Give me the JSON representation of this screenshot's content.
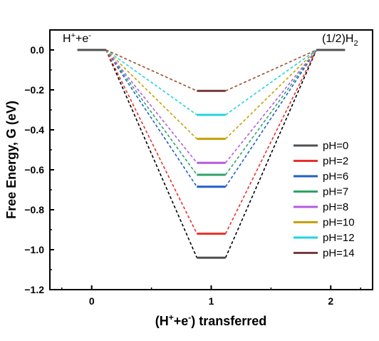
{
  "chart_data": {
    "type": "line",
    "xlabel": "(H⁺+e⁻) transferred",
    "ylabel": "Free Energy, G (eV)",
    "xlim": [
      -0.35,
      2.35
    ],
    "ylim": [
      -1.2,
      0.1
    ],
    "x_ticks": [
      0,
      1,
      2
    ],
    "x_tick_labels": [
      "0",
      "1",
      "2"
    ],
    "y_ticks": [
      0.0,
      -0.2,
      -0.4,
      -0.6,
      -0.8,
      -1.0,
      -1.2
    ],
    "y_tick_labels": [
      "0.0",
      "−0.2",
      "−0.4",
      "−0.6",
      "−0.8",
      "−1.0",
      "−1.2"
    ],
    "step_labels": [
      "H⁺+e⁻",
      "(1/2)H₂"
    ],
    "legend_position": "right",
    "grid": false,
    "series": [
      {
        "name": "pH=0",
        "color": "#505050",
        "dash_color": "#000000",
        "values": [
          0.0,
          -1.04,
          0.0
        ]
      },
      {
        "name": "pH=2",
        "color": "#e8302a",
        "dash_color": "#e8302a",
        "values": [
          0.0,
          -0.92,
          0.0
        ]
      },
      {
        "name": "pH=6",
        "color": "#1f5fc8",
        "dash_color": "#1f5fc8",
        "values": [
          0.0,
          -0.685,
          0.0
        ]
      },
      {
        "name": "pH=7",
        "color": "#2ea36a",
        "dash_color": "#2ea36a",
        "values": [
          0.0,
          -0.625,
          0.0
        ]
      },
      {
        "name": "pH=8",
        "color": "#b55be0",
        "dash_color": "#b55be0",
        "values": [
          0.0,
          -0.565,
          0.0
        ]
      },
      {
        "name": "pH=10",
        "color": "#c9a000",
        "dash_color": "#c9a000",
        "values": [
          0.0,
          -0.445,
          0.0
        ]
      },
      {
        "name": "pH=12",
        "color": "#22d3e0",
        "dash_color": "#22d3e0",
        "values": [
          0.0,
          -0.325,
          0.0
        ]
      },
      {
        "name": "pH=14",
        "color": "#7a3b3b",
        "dash_color": "#a0522d",
        "values": [
          0.0,
          -0.205,
          0.0
        ]
      }
    ]
  }
}
